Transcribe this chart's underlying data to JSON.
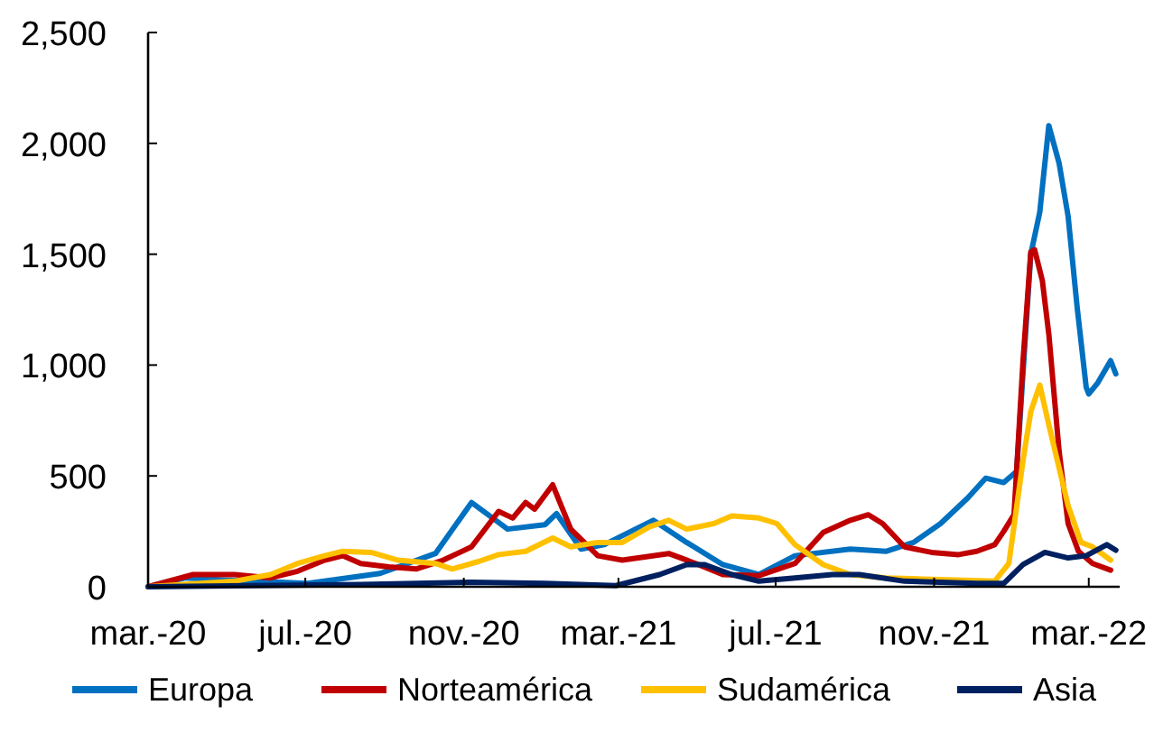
{
  "chart_data": {
    "type": "line",
    "xlim": [
      "2020-03-01",
      "2022-03-25"
    ],
    "ylim": [
      0,
      2500
    ],
    "xticks": [
      {
        "value": "2020-03-01",
        "label": "mar.-20"
      },
      {
        "value": "2020-07-01",
        "label": "jul.-20"
      },
      {
        "value": "2020-11-01",
        "label": "nov.-20"
      },
      {
        "value": "2021-03-01",
        "label": "mar.-21"
      },
      {
        "value": "2021-07-01",
        "label": "jul.-21"
      },
      {
        "value": "2021-11-01",
        "label": "nov.-21"
      },
      {
        "value": "2022-03-01",
        "label": "mar.-22"
      }
    ],
    "yticks": [
      {
        "value": 0,
        "label": "0"
      },
      {
        "value": 500,
        "label": "500"
      },
      {
        "value": 1000,
        "label": "1,000"
      },
      {
        "value": 1500,
        "label": "1,500"
      },
      {
        "value": 2000,
        "label": "2,000"
      },
      {
        "value": 2500,
        "label": "2,500"
      }
    ],
    "grid": false,
    "legend": "bottom",
    "marker": "none",
    "line_style": "solid",
    "series": [
      {
        "name": "Europa",
        "color": "#0070c0",
        "x": [
          "2020-03-01",
          "2020-03-30",
          "2020-05-01",
          "2020-07-03",
          "2020-08-28",
          "2020-10-10",
          "2020-11-07",
          "2020-12-05",
          "2021-01-03",
          "2021-01-12",
          "2021-01-31",
          "2021-02-18",
          "2021-03-28",
          "2021-04-23",
          "2021-05-21",
          "2021-06-18",
          "2021-07-16",
          "2021-08-28",
          "2021-09-25",
          "2021-10-16",
          "2021-11-06",
          "2021-11-27",
          "2021-12-11",
          "2021-12-25",
          "2022-01-04",
          "2022-01-15",
          "2022-01-22",
          "2022-01-29",
          "2022-02-06",
          "2022-02-13",
          "2022-02-20",
          "2022-02-27",
          "2022-03-01",
          "2022-03-08",
          "2022-03-18",
          "2022-03-22"
        ],
        "values": [
          0,
          40,
          30,
          15,
          60,
          150,
          380,
          260,
          280,
          330,
          170,
          190,
          300,
          200,
          100,
          55,
          140,
          170,
          160,
          200,
          285,
          400,
          490,
          470,
          520,
          1500,
          1690,
          2080,
          1910,
          1670,
          1260,
          900,
          870,
          920,
          1020,
          960
        ]
      },
      {
        "name": "Norteamérica",
        "color": "#c00000",
        "x": [
          "2020-03-01",
          "2020-04-05",
          "2020-05-07",
          "2020-06-04",
          "2020-06-25",
          "2020-07-16",
          "2020-07-30",
          "2020-08-13",
          "2020-09-04",
          "2020-09-25",
          "2020-10-16",
          "2020-11-07",
          "2020-11-28",
          "2020-12-09",
          "2020-12-19",
          "2020-12-26",
          "2021-01-09",
          "2021-01-23",
          "2021-02-13",
          "2021-03-04",
          "2021-04-09",
          "2021-04-30",
          "2021-05-21",
          "2021-06-18",
          "2021-07-16",
          "2021-08-07",
          "2021-08-28",
          "2021-09-11",
          "2021-09-22",
          "2021-10-09",
          "2021-10-30",
          "2021-11-20",
          "2021-12-04",
          "2021-12-18",
          "2021-12-25",
          "2022-01-02",
          "2022-01-09",
          "2022-01-15",
          "2022-01-18",
          "2022-01-24",
          "2022-01-29",
          "2022-02-06",
          "2022-02-13",
          "2022-02-21",
          "2022-03-04",
          "2022-03-18"
        ],
        "values": [
          0,
          55,
          55,
          40,
          70,
          120,
          140,
          105,
          90,
          80,
          120,
          180,
          340,
          310,
          380,
          350,
          460,
          260,
          140,
          120,
          150,
          105,
          55,
          50,
          105,
          245,
          300,
          325,
          285,
          180,
          155,
          145,
          160,
          190,
          250,
          325,
          1020,
          1510,
          1520,
          1380,
          1140,
          610,
          285,
          160,
          105,
          75
        ]
      },
      {
        "name": "Sudamérica",
        "color": "#ffc000",
        "x": [
          "2020-03-01",
          "2020-05-07",
          "2020-06-04",
          "2020-06-25",
          "2020-07-16",
          "2020-07-30",
          "2020-08-21",
          "2020-09-11",
          "2020-10-10",
          "2020-10-23",
          "2020-11-13",
          "2020-11-28",
          "2020-12-19",
          "2021-01-09",
          "2021-01-23",
          "2021-02-13",
          "2021-03-04",
          "2021-03-25",
          "2021-04-09",
          "2021-04-23",
          "2021-05-14",
          "2021-05-28",
          "2021-06-18",
          "2021-07-02",
          "2021-07-16",
          "2021-08-07",
          "2021-08-28",
          "2021-09-25",
          "2021-10-23",
          "2021-12-18",
          "2021-12-29",
          "2022-01-09",
          "2022-01-15",
          "2022-01-22",
          "2022-01-29",
          "2022-02-13",
          "2022-02-23",
          "2022-03-04",
          "2022-03-18"
        ],
        "values": [
          0,
          25,
          55,
          105,
          140,
          160,
          155,
          120,
          105,
          80,
          115,
          145,
          160,
          220,
          180,
          200,
          200,
          270,
          300,
          260,
          285,
          320,
          310,
          285,
          190,
          100,
          55,
          40,
          35,
          25,
          105,
          570,
          790,
          910,
          730,
          365,
          200,
          180,
          120
        ]
      },
      {
        "name": "Asia",
        "color": "#002060",
        "x": [
          "2020-03-01",
          "2020-08-13",
          "2020-11-07",
          "2021-01-03",
          "2021-02-27",
          "2021-04-02",
          "2021-04-23",
          "2021-05-07",
          "2021-05-28",
          "2021-06-18",
          "2021-07-16",
          "2021-08-14",
          "2021-09-04",
          "2021-10-09",
          "2021-12-04",
          "2021-12-25",
          "2022-01-09",
          "2022-01-26",
          "2022-02-13",
          "2022-02-27",
          "2022-03-15",
          "2022-03-22"
        ],
        "values": [
          0,
          10,
          20,
          15,
          5,
          55,
          100,
          100,
          55,
          25,
          40,
          55,
          55,
          25,
          15,
          15,
          100,
          155,
          130,
          140,
          190,
          165
        ]
      }
    ]
  }
}
